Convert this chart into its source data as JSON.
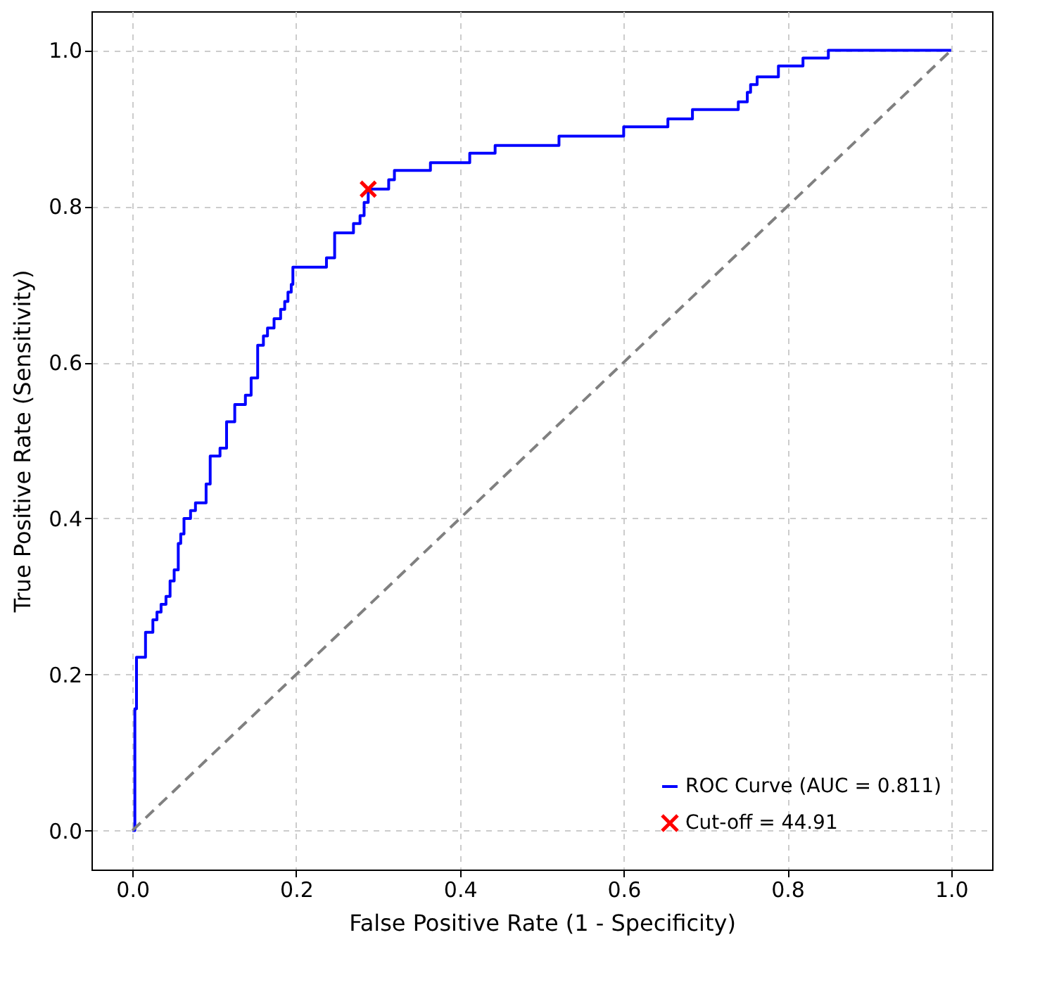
{
  "chart_data": {
    "type": "line",
    "xlabel": "False Positive Rate (1 - Specificity)",
    "ylabel": "True Positive Rate (Sensitivity)",
    "xlim": [
      -0.05,
      1.05
    ],
    "ylim": [
      -0.05,
      1.05
    ],
    "xticks": [
      {
        "value": 0,
        "label": "0.0"
      },
      {
        "value": 0.2,
        "label": "0.2"
      },
      {
        "value": 0.4,
        "label": "0.4"
      },
      {
        "value": 0.6,
        "label": "0.6"
      },
      {
        "value": 0.8,
        "label": "0.8"
      },
      {
        "value": 1,
        "label": "1.0"
      }
    ],
    "yticks": [
      {
        "value": 0,
        "label": "0.0"
      },
      {
        "value": 0.2,
        "label": "0.2"
      },
      {
        "value": 0.4,
        "label": "0.4"
      },
      {
        "value": 0.6,
        "label": "0.6"
      },
      {
        "value": 0.8,
        "label": "0.8"
      },
      {
        "value": 1,
        "label": "1.0"
      }
    ],
    "grid": true,
    "legend": "bottom right",
    "series": [
      {
        "name": "ROC Curve (AUC = 0.811)",
        "type": "line",
        "color": "#0000ff",
        "line_style": "solid",
        "x": [
          0,
          0.003,
          0.003,
          0.005,
          0.005,
          0.016,
          0.016,
          0.025,
          0.025,
          0.03,
          0.03,
          0.035,
          0.035,
          0.041,
          0.041,
          0.046,
          0.046,
          0.051,
          0.051,
          0.056,
          0.056,
          0.059,
          0.059,
          0.063,
          0.063,
          0.071,
          0.071,
          0.077,
          0.077,
          0.09,
          0.09,
          0.095,
          0.095,
          0.107,
          0.107,
          0.115,
          0.115,
          0.125,
          0.125,
          0.138,
          0.138,
          0.145,
          0.145,
          0.153,
          0.153,
          0.16,
          0.16,
          0.165,
          0.165,
          0.173,
          0.173,
          0.181,
          0.181,
          0.186,
          0.186,
          0.19,
          0.19,
          0.194,
          0.194,
          0.196,
          0.196,
          0.237,
          0.237,
          0.247,
          0.247,
          0.27,
          0.27,
          0.278,
          0.278,
          0.283,
          0.283,
          0.288,
          0.288,
          0.313,
          0.313,
          0.32,
          0.32,
          0.364,
          0.364,
          0.412,
          0.412,
          0.443,
          0.443,
          0.521,
          0.521,
          0.6,
          0.6,
          0.654,
          0.654,
          0.684,
          0.684,
          0.74,
          0.74,
          0.751,
          0.751,
          0.755,
          0.755,
          0.763,
          0.763,
          0.789,
          0.789,
          0.819,
          0.819,
          0.85,
          0.85,
          1
        ],
        "values": [
          0,
          0,
          0.156,
          0.156,
          0.222,
          0.222,
          0.254,
          0.254,
          0.27,
          0.27,
          0.28,
          0.28,
          0.29,
          0.29,
          0.3,
          0.3,
          0.32,
          0.32,
          0.334,
          0.334,
          0.368,
          0.368,
          0.38,
          0.38,
          0.4,
          0.4,
          0.41,
          0.41,
          0.42,
          0.42,
          0.444,
          0.444,
          0.48,
          0.48,
          0.49,
          0.49,
          0.524,
          0.524,
          0.546,
          0.546,
          0.558,
          0.558,
          0.58,
          0.58,
          0.622,
          0.622,
          0.634,
          0.634,
          0.644,
          0.644,
          0.656,
          0.656,
          0.668,
          0.668,
          0.678,
          0.678,
          0.69,
          0.69,
          0.7,
          0.7,
          0.722,
          0.722,
          0.734,
          0.734,
          0.766,
          0.766,
          0.778,
          0.778,
          0.788,
          0.788,
          0.805,
          0.805,
          0.822,
          0.822,
          0.834,
          0.834,
          0.846,
          0.846,
          0.856,
          0.856,
          0.868,
          0.868,
          0.878,
          0.878,
          0.89,
          0.89,
          0.902,
          0.902,
          0.912,
          0.912,
          0.924,
          0.924,
          0.934,
          0.934,
          0.946,
          0.946,
          0.956,
          0.956,
          0.966,
          0.966,
          0.98,
          0.98,
          0.99,
          0.99,
          1,
          1
        ]
      },
      {
        "type": "line",
        "color": "#808080",
        "line_style": "dashed",
        "x": [
          0,
          1
        ],
        "values": [
          0,
          1
        ]
      },
      {
        "name": "Cut-off = 44.91",
        "type": "scatter",
        "color": "#ff0000",
        "marker": "cross",
        "x": [
          0.288
        ],
        "values": [
          0.822
        ]
      }
    ]
  }
}
